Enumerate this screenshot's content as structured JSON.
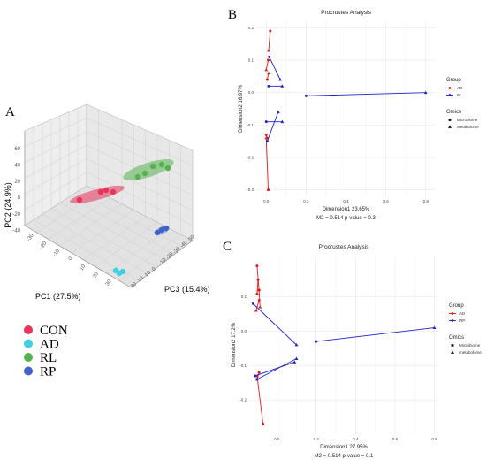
{
  "panels": {
    "A": "A",
    "B": "B",
    "C": "C"
  },
  "panelA": {
    "type": "scatter3d",
    "axes": {
      "pc1": "PC1 (27.5%)",
      "pc2": "PC2 (24.9%)",
      "pc3": "PC3 (15.4%)"
    },
    "pc2_ticks": [
      "60",
      "40",
      "20",
      "0",
      "-20",
      "-40"
    ],
    "pc1_ticks": [
      "-30",
      "-20",
      "-10",
      "0",
      "10",
      "20",
      "30"
    ],
    "pc3_ticks": [
      "-50",
      "-40",
      "-30",
      "-20",
      "-10",
      "0",
      "10",
      "20",
      "30"
    ],
    "groups": [
      {
        "name": "CON",
        "color": "#e8335a"
      },
      {
        "name": "AD",
        "color": "#3fd0e6"
      },
      {
        "name": "RL",
        "color": "#55b04f"
      },
      {
        "name": "RP",
        "color": "#3d63c9"
      }
    ]
  },
  "chart_data": [
    {
      "type": "scatter",
      "title": "Procrustes Analysis",
      "xlabel": "Dimension1 23.65%",
      "ylabel": "Dimension2 16.97%",
      "caption": "M2 = 0.514   p-value = 0.3",
      "xlim": [
        -0.05,
        0.85
      ],
      "ylim": [
        -0.32,
        0.22
      ],
      "x_ticks": [
        0.0,
        0.2,
        0.4,
        0.6,
        0.8
      ],
      "x_tick_labels": [
        "0.0",
        "0.2",
        "0.4",
        "0.6",
        "0.8"
      ],
      "y_ticks": [
        0.2,
        0.1,
        0.0,
        -0.1,
        -0.2,
        -0.3
      ],
      "y_tick_labels": [
        "0.2",
        "0.1",
        "0.0",
        "-0.1",
        "-0.2",
        "-0.3"
      ],
      "grid": true,
      "legend": {
        "group_title": "Group",
        "groups": [
          {
            "name": "AD",
            "color": "#e31a1c"
          },
          {
            "name": "RL",
            "color": "#1f24c8"
          }
        ],
        "omics_title": "Omics",
        "omics": [
          "Microbiome",
          "metabolome"
        ]
      },
      "series": [
        {
          "name": "AD",
          "color": "#e31a1c",
          "pairs": [
            [
              [
                0.02,
                0.19
              ],
              [
                0.012,
                0.13
              ]
            ],
            [
              [
                0.01,
                0.1
              ],
              [
                0.0,
                0.07
              ]
            ],
            [
              [
                0.005,
                0.04
              ],
              [
                0.012,
                0.06
              ]
            ],
            [
              [
                0.0,
                -0.13
              ],
              [
                0.005,
                -0.14
              ]
            ],
            [
              [
                0.01,
                -0.3
              ],
              [
                0.0,
                -0.14
              ]
            ]
          ]
        },
        {
          "name": "RL",
          "color": "#1f24c8",
          "pairs": [
            [
              [
                0.015,
                0.11
              ],
              [
                0.07,
                0.04
              ]
            ],
            [
              [
                0.012,
                0.02
              ],
              [
                0.08,
                0.02
              ]
            ],
            [
              [
                0.2,
                -0.01
              ],
              [
                0.8,
                0.0
              ]
            ],
            [
              [
                0.0,
                -0.09
              ],
              [
                0.08,
                -0.09
              ]
            ],
            [
              [
                0.005,
                -0.15
              ],
              [
                0.06,
                -0.06
              ]
            ]
          ]
        }
      ]
    },
    {
      "type": "scatter",
      "title": "Procrustes Analysis",
      "xlabel": "Dimension1 27.95%",
      "ylabel": "Dimension2 17.2%",
      "caption": "M2 = 0.514   p-value = 0.1",
      "xlim": [
        -0.14,
        0.82
      ],
      "ylim": [
        -0.3,
        0.22
      ],
      "x_ticks": [
        0.0,
        0.2,
        0.4,
        0.6,
        0.8
      ],
      "x_tick_labels": [
        "0.0",
        "0.2",
        "0.4",
        "0.6",
        "0.8"
      ],
      "y_ticks": [
        0.1,
        0.0,
        -0.1,
        -0.2
      ],
      "y_tick_labels": [
        "0.1",
        "0.0",
        "-0.1",
        "-0.2"
      ],
      "grid": true,
      "legend": {
        "group_title": "Group",
        "groups": [
          {
            "name": "AD",
            "color": "#e31a1c"
          },
          {
            "name": "RP",
            "color": "#1f24c8"
          }
        ],
        "omics_title": "Omics",
        "omics": [
          "Microbiome",
          "metabolome"
        ]
      },
      "series": [
        {
          "name": "AD",
          "color": "#e31a1c",
          "pairs": [
            [
              [
                -0.1,
                0.19
              ],
              [
                -0.09,
                0.12
              ]
            ],
            [
              [
                -0.095,
                0.15
              ],
              [
                -0.1,
                0.11
              ]
            ],
            [
              [
                -0.09,
                0.12
              ],
              [
                -0.085,
                0.07
              ]
            ],
            [
              [
                -0.09,
                0.09
              ],
              [
                -0.105,
                0.06
              ]
            ],
            [
              [
                -0.09,
                -0.12
              ],
              [
                -0.1,
                -0.14
              ]
            ],
            [
              [
                -0.07,
                -0.27
              ],
              [
                -0.1,
                -0.13
              ]
            ]
          ]
        },
        {
          "name": "RP",
          "color": "#1f24c8",
          "pairs": [
            [
              [
                -0.12,
                0.08
              ],
              [
                0.1,
                -0.04
              ]
            ],
            [
              [
                -0.11,
                -0.13
              ],
              [
                0.09,
                -0.09
              ]
            ],
            [
              [
                -0.1,
                -0.14
              ],
              [
                0.1,
                -0.08
              ]
            ],
            [
              [
                0.2,
                -0.03
              ],
              [
                0.8,
                0.01
              ]
            ]
          ]
        }
      ]
    }
  ]
}
